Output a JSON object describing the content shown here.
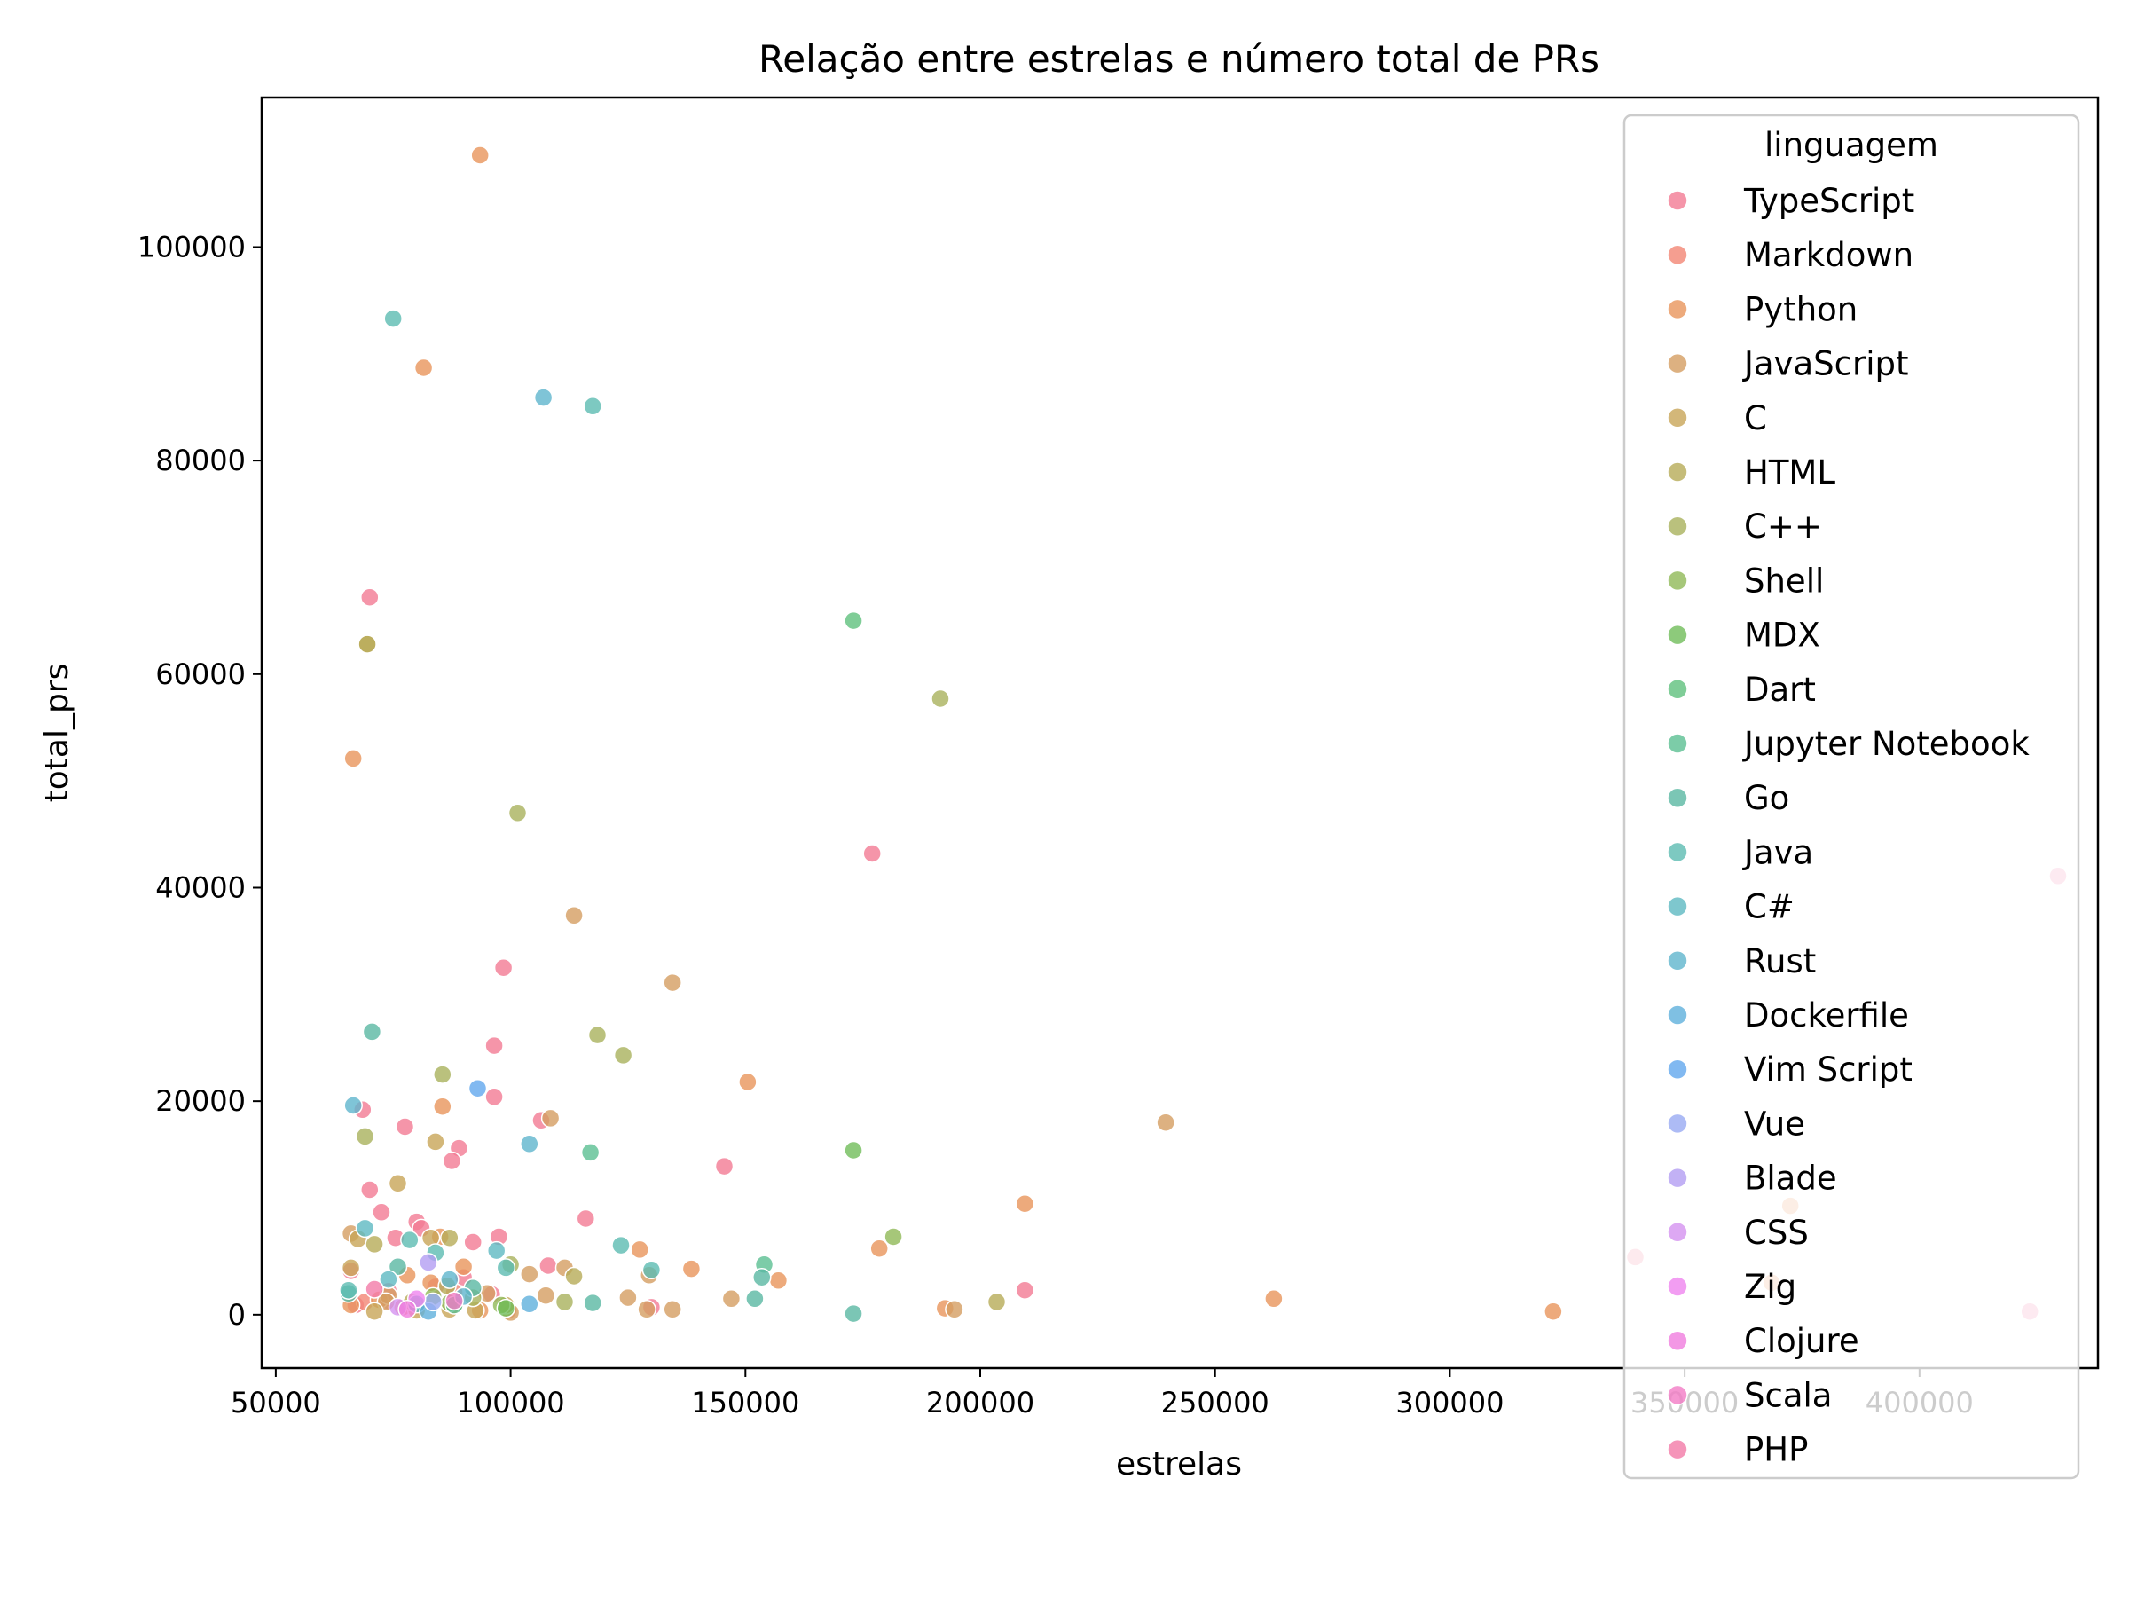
{
  "chart_data": {
    "type": "scatter",
    "title": "Relação entre estrelas e número total de PRs",
    "xlabel": "estrelas",
    "ylabel": "total_prs",
    "xlim": [
      47000,
      438000
    ],
    "ylim": [
      -5000,
      114000
    ],
    "xticks": [
      50000,
      100000,
      150000,
      200000,
      250000,
      300000,
      350000,
      400000
    ],
    "xtick_labels": [
      "50000",
      "100000",
      "150000",
      "200000",
      "250000",
      "300000",
      "350000",
      "400000"
    ],
    "yticks": [
      0,
      20000,
      40000,
      60000,
      80000,
      100000
    ],
    "ytick_labels": [
      "0",
      "20000",
      "40000",
      "60000",
      "80000",
      "100000"
    ],
    "grid": false,
    "legend": {
      "title": "linguagem",
      "placement": "top-right"
    },
    "series": [
      {
        "name": "TypeScript",
        "color": "#f37b94",
        "points": [
          [
            70000,
            67200
          ],
          [
            177000,
            43200
          ],
          [
            98500,
            32500
          ],
          [
            96500,
            25200
          ],
          [
            96500,
            20400
          ],
          [
            68500,
            19200
          ],
          [
            77500,
            17600
          ],
          [
            106500,
            18200
          ],
          [
            89000,
            15600
          ],
          [
            87500,
            14400
          ],
          [
            145500,
            13900
          ],
          [
            70000,
            11700
          ],
          [
            72500,
            9600
          ],
          [
            80000,
            8700
          ],
          [
            81000,
            8100
          ],
          [
            116000,
            9000
          ],
          [
            75500,
            7200
          ],
          [
            92000,
            6800
          ],
          [
            97500,
            7300
          ],
          [
            108000,
            4600
          ],
          [
            339500,
            5400
          ],
          [
            209500,
            2300
          ],
          [
            66000,
            4100
          ],
          [
            84000,
            2600
          ],
          [
            74000,
            1300
          ],
          [
            80000,
            800
          ],
          [
            90000,
            3500
          ],
          [
            96000,
            1900
          ],
          [
            130000,
            700
          ],
          [
            74000,
            2200
          ],
          [
            67000,
            900
          ]
        ]
      },
      {
        "name": "Markdown",
        "color": "#f38674",
        "points": [
          [
            88000,
            2100
          ],
          [
            77000,
            700
          ],
          [
            99500,
            400
          ],
          [
            69000,
            1200
          ]
        ]
      },
      {
        "name": "Python",
        "color": "#e8955b",
        "points": [
          [
            93500,
            108600
          ],
          [
            81500,
            88700
          ],
          [
            66500,
            52100
          ],
          [
            85500,
            19500
          ],
          [
            150500,
            21800
          ],
          [
            209500,
            10400
          ],
          [
            178500,
            6200
          ],
          [
            127500,
            6100
          ],
          [
            138500,
            4300
          ],
          [
            157000,
            3200
          ],
          [
            262500,
            1500
          ],
          [
            322000,
            300
          ],
          [
            368500,
            3000
          ],
          [
            372500,
            10200
          ],
          [
            85000,
            7300
          ],
          [
            90000,
            4500
          ],
          [
            78000,
            3700
          ],
          [
            83000,
            3000
          ],
          [
            66000,
            900
          ],
          [
            192500,
            600
          ],
          [
            93500,
            400
          ],
          [
            72000,
            1400
          ]
        ]
      },
      {
        "name": "JavaScript",
        "color": "#d59e62",
        "points": [
          [
            113500,
            37400
          ],
          [
            134500,
            31100
          ],
          [
            108500,
            18400
          ],
          [
            239500,
            18000
          ],
          [
            66000,
            7600
          ],
          [
            104000,
            3800
          ],
          [
            111500,
            4400
          ],
          [
            129500,
            3700
          ],
          [
            125000,
            1600
          ],
          [
            147000,
            1500
          ],
          [
            194500,
            500
          ],
          [
            134500,
            500
          ],
          [
            129000,
            500
          ],
          [
            88000,
            900
          ],
          [
            74000,
            1800
          ],
          [
            107500,
            1800
          ],
          [
            73500,
            1200
          ],
          [
            95000,
            2000
          ],
          [
            100000,
            200
          ]
        ]
      },
      {
        "name": "C",
        "color": "#c8a558",
        "points": [
          [
            76000,
            12300
          ],
          [
            69500,
            62800
          ],
          [
            84000,
            16200
          ],
          [
            83000,
            7200
          ],
          [
            67500,
            7100
          ],
          [
            66000,
            4400
          ],
          [
            99000,
            900
          ],
          [
            92500,
            400
          ],
          [
            87000,
            500
          ],
          [
            80000,
            400
          ],
          [
            71000,
            300
          ]
        ]
      },
      {
        "name": "HTML",
        "color": "#b7ab58",
        "points": [
          [
            69500,
            62800
          ],
          [
            71000,
            6600
          ],
          [
            87000,
            7200
          ],
          [
            113500,
            3600
          ],
          [
            203500,
            1200
          ],
          [
            79000,
            1200
          ],
          [
            86500,
            2700
          ]
        ]
      },
      {
        "name": "C++",
        "color": "#a9b25d",
        "points": [
          [
            191500,
            57700
          ],
          [
            101500,
            47000
          ],
          [
            118500,
            26200
          ],
          [
            124000,
            24300
          ],
          [
            85500,
            22500
          ],
          [
            69000,
            16700
          ],
          [
            100000,
            4700
          ],
          [
            111500,
            1200
          ],
          [
            92000,
            1600
          ]
        ]
      },
      {
        "name": "Shell",
        "color": "#90b958",
        "points": [
          [
            181500,
            7300
          ],
          [
            87000,
            1100
          ],
          [
            98000,
            900
          ],
          [
            83500,
            1700
          ]
        ]
      },
      {
        "name": "MDX",
        "color": "#71bd5a",
        "points": [
          [
            173000,
            15400
          ],
          [
            99000,
            600
          ]
        ]
      },
      {
        "name": "Dart",
        "color": "#5fc07d",
        "points": [
          [
            173000,
            65000
          ]
        ]
      },
      {
        "name": "Jupyter Notebook",
        "color": "#5bbf92",
        "points": [
          [
            117000,
            15200
          ],
          [
            154000,
            4700
          ],
          [
            88000,
            900
          ]
        ]
      },
      {
        "name": "Go",
        "color": "#5ab8a3",
        "points": [
          [
            70500,
            26500
          ],
          [
            153500,
            3500
          ],
          [
            152000,
            1500
          ],
          [
            117500,
            1100
          ],
          [
            173000,
            100
          ],
          [
            65500,
            2000
          ],
          [
            76000,
            4500
          ],
          [
            92000,
            2500
          ]
        ]
      },
      {
        "name": "Java",
        "color": "#5cbcb1",
        "points": [
          [
            75000,
            93300
          ],
          [
            117500,
            85100
          ],
          [
            123500,
            6500
          ],
          [
            84000,
            5800
          ],
          [
            99000,
            4400
          ],
          [
            130000,
            4200
          ],
          [
            65500,
            2300
          ],
          [
            78500,
            7000
          ]
        ]
      },
      {
        "name": "C#",
        "color": "#5eb9c2",
        "points": [
          [
            69000,
            8100
          ],
          [
            97000,
            6000
          ],
          [
            80000,
            1000
          ],
          [
            74000,
            3300
          ]
        ]
      },
      {
        "name": "Rust",
        "color": "#5fb5cd",
        "points": [
          [
            107000,
            85900
          ],
          [
            66500,
            19600
          ],
          [
            104000,
            16000
          ],
          [
            90000,
            1700
          ],
          [
            87000,
            3300
          ]
        ]
      },
      {
        "name": "Dockerfile",
        "color": "#5fb0dc",
        "points": [
          [
            104000,
            1000
          ],
          [
            82500,
            300
          ]
        ]
      },
      {
        "name": "Vim Script",
        "color": "#62a8ee",
        "points": [
          [
            93000,
            21200
          ]
        ]
      },
      {
        "name": "Vue",
        "color": "#98aaf2",
        "points": [
          [
            83500,
            1200
          ]
        ]
      },
      {
        "name": "Blade",
        "color": "#b39ef3",
        "points": [
          [
            82500,
            4900
          ]
        ]
      },
      {
        "name": "CSS",
        "color": "#d492f0",
        "points": [
          [
            76000,
            700
          ]
        ]
      },
      {
        "name": "Zig",
        "color": "#ef84ef",
        "points": [
          [
            80000,
            1500
          ]
        ]
      },
      {
        "name": "Clojure",
        "color": "#f07dde",
        "points": [
          [
            78000,
            500
          ]
        ]
      },
      {
        "name": "Scala",
        "color": "#f27cc6",
        "points": [
          [
            88000,
            1300
          ]
        ]
      },
      {
        "name": "PHP",
        "color": "#f37aa7",
        "points": [
          [
            423500,
            300
          ],
          [
            429500,
            41100
          ],
          [
            71000,
            2400
          ]
        ]
      }
    ]
  }
}
